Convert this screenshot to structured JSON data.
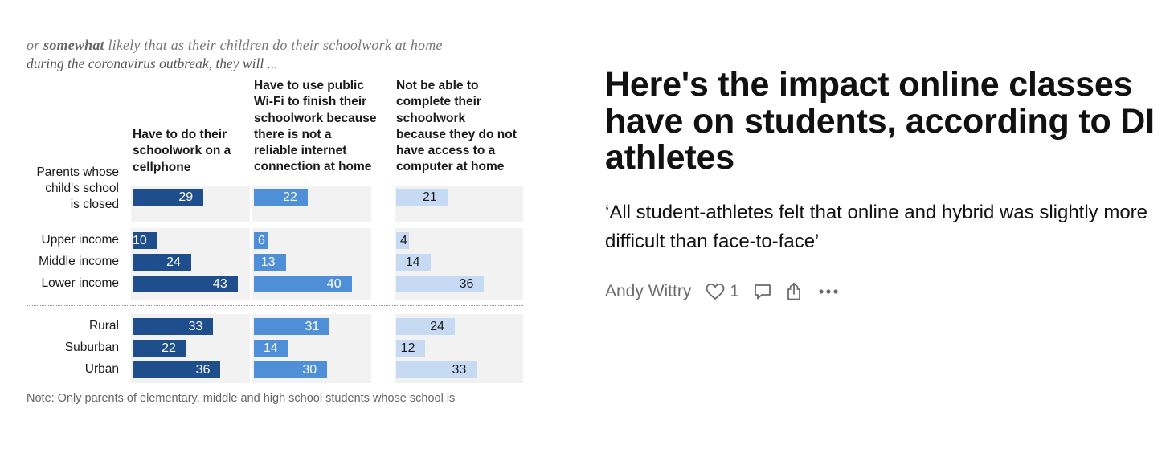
{
  "chart_image": {
    "cutoff_line": {
      "bold_part": "somewhat",
      "rest": "likely that as their children do their schoolwork at home",
      "lead": "or"
    },
    "intro_line": "during the coronavirus outbreak, they will ...",
    "note": "Note: Only parents of elementary, middle and high school students whose school is"
  },
  "chart_data": {
    "type": "bar",
    "columns": [
      "Have to do their\nschoolwork on a\ncellphone",
      "Have to use public\nWi-Fi to finish their\nschoolwork because\nthere is not a\nreliable internet\nconnection at home",
      "Not be able to\ncomplete their\nschoolwork\nbecause they do not\nhave access to a\ncomputer at home"
    ],
    "categories": [
      "Parents whose\nchild's school\nis closed",
      "Upper income",
      "Middle income",
      "Lower income",
      "Rural",
      "Suburban",
      "Urban"
    ],
    "series": [
      {
        "values": [
          29,
          10,
          24,
          43,
          33,
          22,
          36
        ]
      },
      {
        "values": [
          22,
          6,
          13,
          40,
          31,
          14,
          30
        ]
      },
      {
        "values": [
          21,
          4,
          14,
          36,
          24,
          12,
          33
        ]
      }
    ],
    "colors": [
      "#1f4e8c",
      "#4e8fd8",
      "#c6dbf3"
    ]
  },
  "article": {
    "headline": "Here's the impact online classes have on students, according to DI athletes",
    "subtitle": "‘All student-athletes felt that online and hybrid was slightly more difficult than face-to-face’",
    "author": "Andy Wittry",
    "like_count": "1"
  },
  "icons": {
    "like": "heart-icon",
    "comment": "comment-icon",
    "share": "share-icon",
    "more": "more-icon"
  }
}
